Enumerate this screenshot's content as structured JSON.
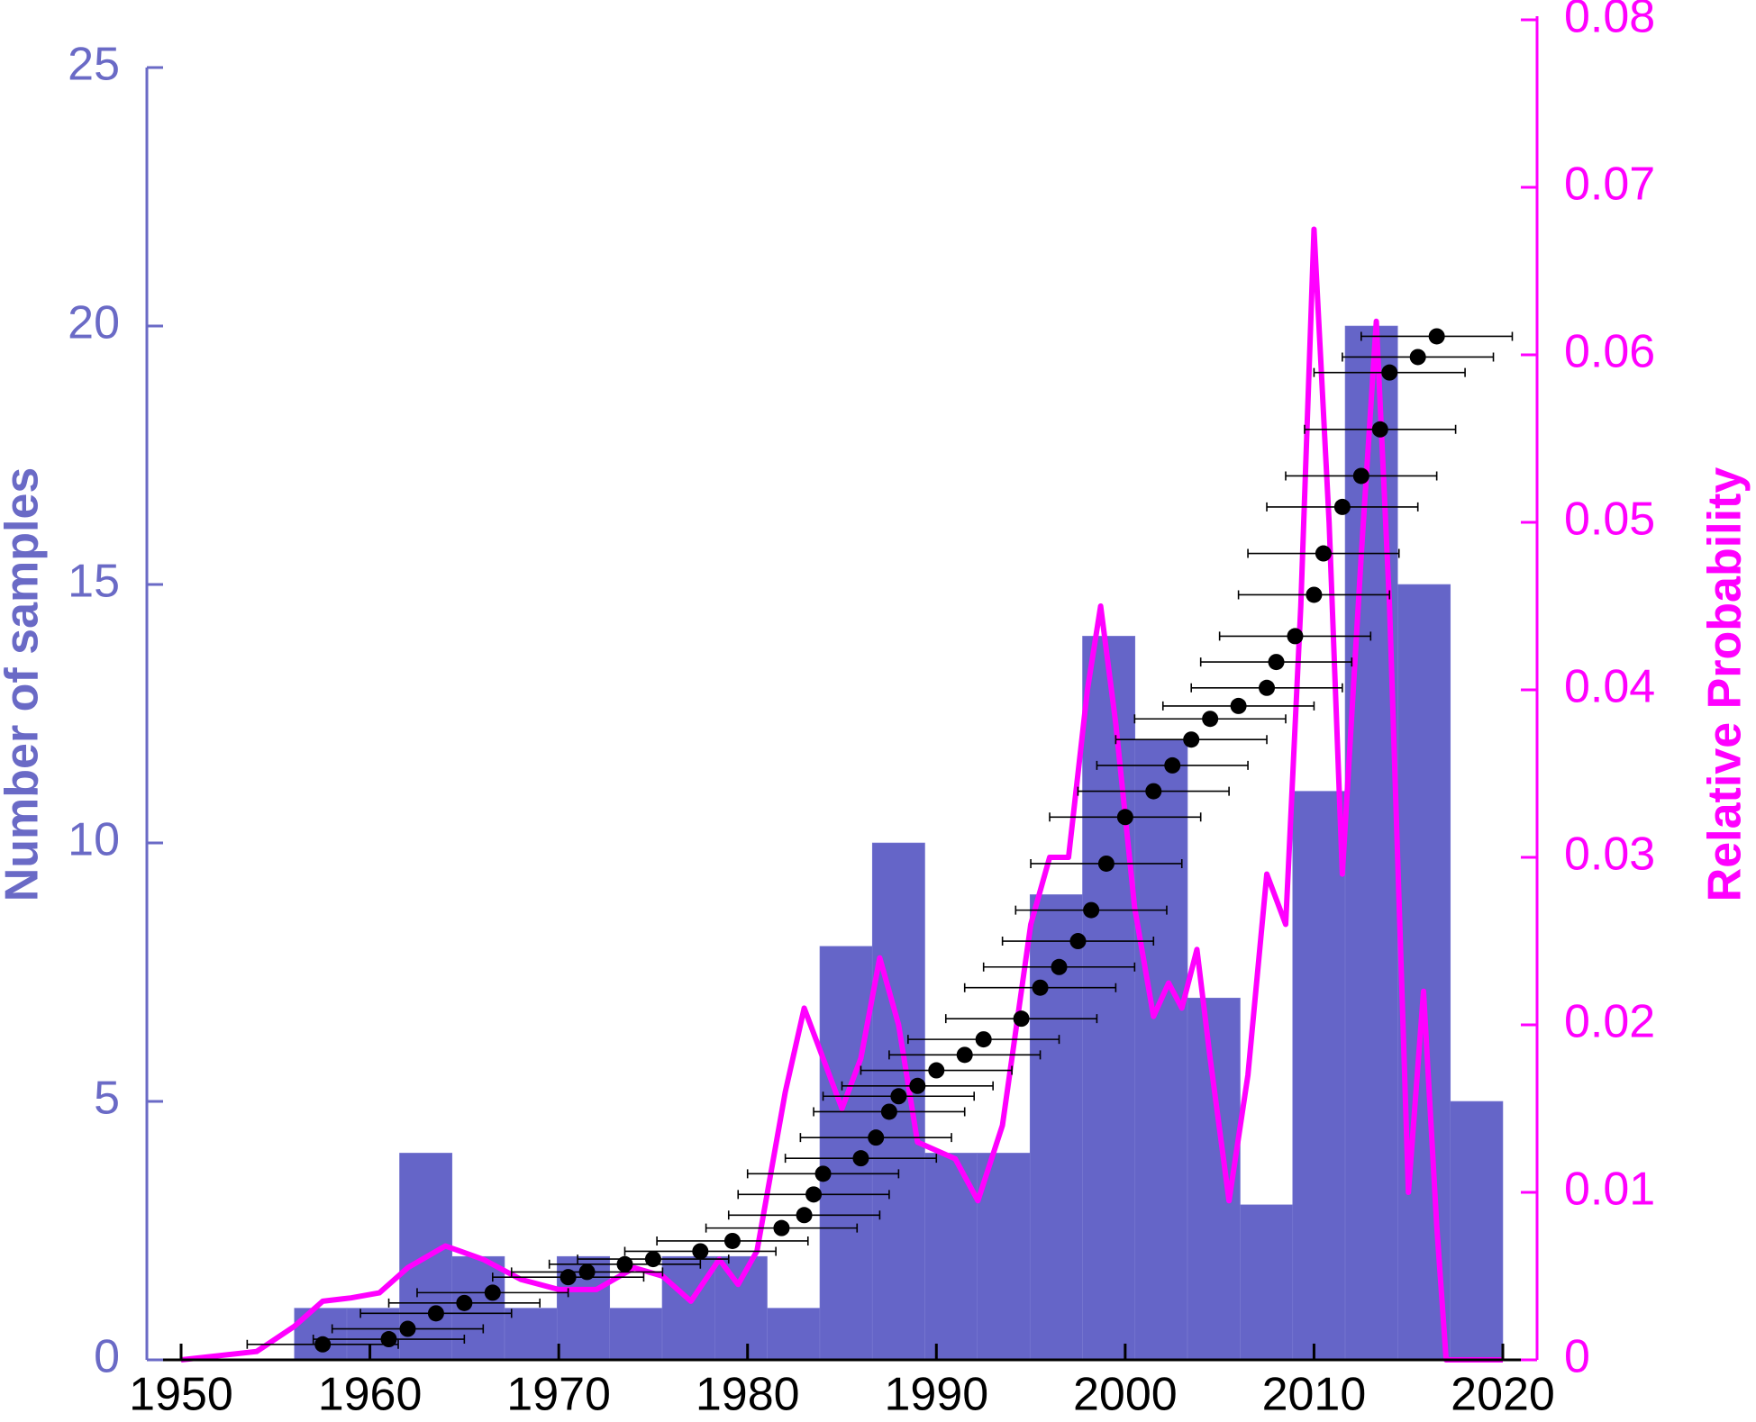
{
  "chart_data": {
    "type": "combo",
    "ylabel": "Number of samples",
    "y2label": "Relative Probability",
    "xlim": [
      1950,
      2020
    ],
    "xticks": [
      1950,
      1960,
      1970,
      1980,
      1990,
      2000,
      2010,
      2020
    ],
    "ylim": [
      0,
      25
    ],
    "yticks": [
      0,
      5,
      10,
      15,
      20,
      25
    ],
    "y2lim": [
      0,
      0.08
    ],
    "y2ticks": [
      0,
      0.01,
      0.02,
      0.03,
      0.04,
      0.05,
      0.06,
      0.07,
      0.08
    ],
    "axis_color": "#6a6ac6",
    "axis2_color": "#ff00ff",
    "series": [
      {
        "type": "histogram",
        "color": "#6565c8",
        "bins": [
          1956,
          1958.78,
          1961.57,
          1964.35,
          1967.13,
          1969.91,
          1972.7,
          1975.48,
          1978.26,
          1981.04,
          1983.83,
          1986.61,
          1989.39,
          1992.17,
          1994.96,
          1997.74,
          2000.52,
          2003.3,
          2006.09,
          2008.87,
          2011.65,
          2014.43,
          2017.22,
          2020
        ],
        "values": [
          1,
          1,
          4,
          2,
          1,
          2,
          1,
          2,
          2,
          1,
          8,
          10,
          4,
          4,
          9,
          14,
          12,
          7,
          3,
          11,
          20,
          15,
          5
        ]
      },
      {
        "type": "line",
        "axis": "y2",
        "color": "#ff00ff",
        "x": [
          1950,
          1954,
          1956,
          1957.5,
          1959,
          1960.5,
          1962,
          1964,
          1966,
          1968,
          1970,
          1972,
          1974,
          1975.5,
          1977,
          1978.5,
          1979.5,
          1980.5,
          1982,
          1983,
          1984,
          1985,
          1986,
          1987,
          1988,
          1989,
          1991,
          1992.2,
          1993.5,
          1995,
          1996,
          1997,
          1998,
          1998.7,
          1999.5,
          2000.5,
          2001.5,
          2002.3,
          2003,
          2003.8,
          2004.5,
          2005.5,
          2006.5,
          2007.5,
          2008.5,
          2009.3,
          2010,
          2010.8,
          2011.5,
          2012.5,
          2013.3,
          2014,
          2015,
          2015.8,
          2016.5,
          2017,
          2020
        ],
        "values": [
          0,
          0.0005,
          0.002,
          0.0035,
          0.0037,
          0.004,
          0.0055,
          0.0068,
          0.006,
          0.0048,
          0.0042,
          0.0042,
          0.0055,
          0.005,
          0.0035,
          0.006,
          0.0045,
          0.0065,
          0.016,
          0.021,
          0.018,
          0.015,
          0.018,
          0.024,
          0.02,
          0.013,
          0.012,
          0.0095,
          0.014,
          0.026,
          0.03,
          0.03,
          0.04,
          0.045,
          0.038,
          0.027,
          0.0205,
          0.0225,
          0.021,
          0.0245,
          0.018,
          0.0095,
          0.017,
          0.029,
          0.026,
          0.045,
          0.0675,
          0.05,
          0.029,
          0.048,
          0.062,
          0.045,
          0.01,
          0.022,
          0.008,
          0,
          0
        ]
      },
      {
        "type": "scatter",
        "color": "#000000",
        "x": [
          1957.5,
          1961,
          1962,
          1963.5,
          1965,
          1966.5,
          1970.5,
          1971.5,
          1973.5,
          1975,
          1977.5,
          1979.2,
          1981.8,
          1983,
          1983.5,
          1984,
          1986,
          1986.8,
          1987.5,
          1988,
          1989,
          1990,
          1991.5,
          1992.5,
          1994.5,
          1995.5,
          1996.5,
          1997.5,
          1998.2,
          1999,
          2000,
          2001.5,
          2002.5,
          2003.5,
          2004.5,
          2006,
          2007.5,
          2008,
          2009,
          2010,
          2010.5,
          2011.5,
          2012.5,
          2013.5,
          2014,
          2015.5,
          2016.5
        ],
        "values": [
          0.3,
          0.4,
          0.6,
          0.9,
          1.1,
          1.3,
          1.6,
          1.7,
          1.85,
          1.95,
          2.1,
          2.3,
          2.55,
          2.8,
          3.2,
          3.6,
          3.9,
          4.3,
          4.8,
          5.1,
          5.3,
          5.6,
          5.9,
          6.2,
          6.6,
          7.2,
          7.6,
          8.1,
          8.7,
          9.6,
          10.5,
          11,
          11.5,
          12,
          12.4,
          12.65,
          13,
          13.5,
          14,
          14.8,
          15.6,
          16.5,
          17.1,
          18,
          19.1,
          19.4,
          19.8
        ],
        "xerr": [
          4,
          4,
          4,
          4,
          4,
          4,
          4,
          4,
          4,
          4,
          4,
          4,
          4,
          4,
          4,
          4,
          4,
          4,
          4,
          4,
          4,
          4,
          4,
          4,
          4,
          4,
          4,
          4,
          4,
          4,
          4,
          4,
          4,
          4,
          4,
          4,
          4,
          4,
          4,
          4,
          4,
          4,
          4,
          4,
          4,
          4,
          4
        ]
      }
    ]
  }
}
